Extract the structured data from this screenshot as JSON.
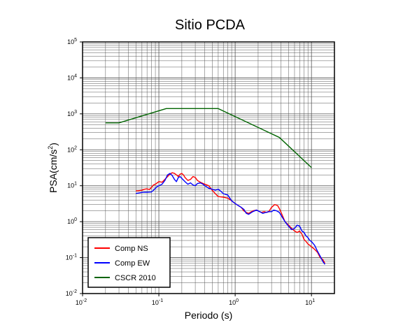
{
  "chart_data": {
    "type": "line",
    "title": "Sitio PCDA",
    "xlabel": "Periodo (s)",
    "ylabel_main": "PSA(cm/s",
    "ylabel_sup": "2",
    "ylabel_close": ")",
    "xscale": "log",
    "yscale": "log",
    "xlim": [
      0.01,
      20
    ],
    "ylim": [
      0.01,
      100000
    ],
    "grid": true,
    "legend_position": "bottom-left",
    "x_ticks": [
      {
        "value": 0.01,
        "base": "10",
        "exp": "-2"
      },
      {
        "value": 0.1,
        "base": "10",
        "exp": "-1"
      },
      {
        "value": 1,
        "base": "10",
        "exp": "0"
      },
      {
        "value": 10,
        "base": "10",
        "exp": "1"
      }
    ],
    "y_ticks": [
      {
        "value": 0.01,
        "base": "10",
        "exp": "-2"
      },
      {
        "value": 0.1,
        "base": "10",
        "exp": "-1"
      },
      {
        "value": 1,
        "base": "10",
        "exp": "0"
      },
      {
        "value": 10,
        "base": "10",
        "exp": "1"
      },
      {
        "value": 100,
        "base": "10",
        "exp": "2"
      },
      {
        "value": 1000,
        "base": "10",
        "exp": "3"
      },
      {
        "value": 10000,
        "base": "10",
        "exp": "4"
      },
      {
        "value": 100000,
        "base": "10",
        "exp": "5"
      }
    ],
    "series": [
      {
        "name": "Comp NS",
        "color": "#ff0000",
        "points": [
          [
            0.05,
            7.2
          ],
          [
            0.055,
            7.3
          ],
          [
            0.06,
            7.5
          ],
          [
            0.065,
            8.0
          ],
          [
            0.07,
            8.2
          ],
          [
            0.075,
            7.8
          ],
          [
            0.08,
            9.0
          ],
          [
            0.085,
            10.5
          ],
          [
            0.09,
            11.0
          ],
          [
            0.095,
            12.0
          ],
          [
            0.1,
            13.0
          ],
          [
            0.11,
            12.5
          ],
          [
            0.12,
            15.0
          ],
          [
            0.13,
            18.0
          ],
          [
            0.14,
            21.0
          ],
          [
            0.15,
            23.0
          ],
          [
            0.16,
            22.0
          ],
          [
            0.17,
            20.0
          ],
          [
            0.18,
            18.0
          ],
          [
            0.19,
            21.0
          ],
          [
            0.2,
            22.0
          ],
          [
            0.21,
            20.0
          ],
          [
            0.22,
            17.0
          ],
          [
            0.24,
            14.0
          ],
          [
            0.26,
            15.0
          ],
          [
            0.28,
            18.0
          ],
          [
            0.3,
            17.0
          ],
          [
            0.32,
            14.0
          ],
          [
            0.35,
            12.5
          ],
          [
            0.4,
            11.0
          ],
          [
            0.45,
            10.0
          ],
          [
            0.5,
            7.5
          ],
          [
            0.55,
            6.0
          ],
          [
            0.6,
            5.0
          ],
          [
            0.7,
            4.8
          ],
          [
            0.8,
            4.5
          ],
          [
            0.9,
            3.8
          ],
          [
            1.0,
            3.2
          ],
          [
            1.1,
            2.8
          ],
          [
            1.2,
            2.5
          ],
          [
            1.3,
            2.0
          ],
          [
            1.4,
            1.8
          ],
          [
            1.5,
            1.7
          ],
          [
            1.7,
            2.0
          ],
          [
            1.9,
            2.1
          ],
          [
            2.0,
            2.0
          ],
          [
            2.2,
            1.8
          ],
          [
            2.4,
            1.9
          ],
          [
            2.6,
            1.8
          ],
          [
            2.8,
            2.0
          ],
          [
            3.0,
            2.5
          ],
          [
            3.3,
            3.0
          ],
          [
            3.6,
            2.8
          ],
          [
            3.8,
            2.3
          ],
          [
            4.0,
            1.8
          ],
          [
            4.5,
            1.0
          ],
          [
            5.0,
            0.8
          ],
          [
            5.5,
            0.65
          ],
          [
            6.0,
            0.55
          ],
          [
            6.5,
            0.5
          ],
          [
            7.0,
            0.55
          ],
          [
            7.5,
            0.45
          ],
          [
            8.0,
            0.32
          ],
          [
            8.5,
            0.28
          ],
          [
            9.0,
            0.24
          ],
          [
            9.5,
            0.22
          ],
          [
            10.0,
            0.2
          ],
          [
            11.0,
            0.17
          ],
          [
            12.0,
            0.14
          ],
          [
            13.0,
            0.1
          ],
          [
            14.0,
            0.09
          ],
          [
            15.0,
            0.07
          ]
        ]
      },
      {
        "name": "Comp EW",
        "color": "#0000ff",
        "points": [
          [
            0.05,
            6.1
          ],
          [
            0.055,
            6.3
          ],
          [
            0.06,
            6.5
          ],
          [
            0.065,
            6.6
          ],
          [
            0.07,
            6.6
          ],
          [
            0.08,
            6.7
          ],
          [
            0.085,
            7.5
          ],
          [
            0.09,
            8.5
          ],
          [
            0.095,
            9.5
          ],
          [
            0.1,
            10.0
          ],
          [
            0.11,
            11.0
          ],
          [
            0.12,
            14.0
          ],
          [
            0.13,
            20.0
          ],
          [
            0.14,
            22.0
          ],
          [
            0.15,
            19.0
          ],
          [
            0.16,
            15.0
          ],
          [
            0.17,
            13.0
          ],
          [
            0.18,
            17.0
          ],
          [
            0.19,
            18.0
          ],
          [
            0.2,
            16.0
          ],
          [
            0.22,
            13.0
          ],
          [
            0.24,
            11.0
          ],
          [
            0.26,
            12.0
          ],
          [
            0.28,
            10.5
          ],
          [
            0.3,
            10.0
          ],
          [
            0.32,
            11.5
          ],
          [
            0.35,
            12.0
          ],
          [
            0.38,
            11.0
          ],
          [
            0.4,
            10.0
          ],
          [
            0.45,
            8.5
          ],
          [
            0.5,
            8.0
          ],
          [
            0.55,
            7.5
          ],
          [
            0.6,
            8.0
          ],
          [
            0.65,
            7.0
          ],
          [
            0.7,
            6.0
          ],
          [
            0.8,
            5.5
          ],
          [
            0.9,
            3.8
          ],
          [
            1.0,
            3.2
          ],
          [
            1.1,
            2.8
          ],
          [
            1.2,
            2.5
          ],
          [
            1.3,
            2.2
          ],
          [
            1.4,
            1.7
          ],
          [
            1.5,
            1.6
          ],
          [
            1.7,
            1.9
          ],
          [
            1.9,
            2.1
          ],
          [
            2.1,
            1.9
          ],
          [
            2.3,
            1.7
          ],
          [
            2.5,
            1.8
          ],
          [
            2.8,
            1.9
          ],
          [
            3.0,
            1.9
          ],
          [
            3.2,
            2.1
          ],
          [
            3.5,
            2.0
          ],
          [
            3.8,
            1.8
          ],
          [
            4.0,
            1.5
          ],
          [
            4.5,
            1.0
          ],
          [
            5.0,
            0.75
          ],
          [
            5.5,
            0.6
          ],
          [
            6.0,
            0.65
          ],
          [
            6.5,
            0.8
          ],
          [
            7.0,
            0.75
          ],
          [
            7.5,
            0.55
          ],
          [
            8.0,
            0.5
          ],
          [
            8.5,
            0.4
          ],
          [
            9.0,
            0.36
          ],
          [
            9.5,
            0.3
          ],
          [
            10.0,
            0.28
          ],
          [
            11.0,
            0.22
          ],
          [
            12.0,
            0.15
          ],
          [
            13.0,
            0.11
          ],
          [
            14.0,
            0.08
          ],
          [
            15.0,
            0.065
          ]
        ]
      },
      {
        "name": "CSCR 2010",
        "color": "#006400",
        "points": [
          [
            0.02,
            560
          ],
          [
            0.03,
            560
          ],
          [
            0.125,
            1400
          ],
          [
            0.6,
            1400
          ],
          [
            3.8,
            220
          ],
          [
            10.0,
            32
          ]
        ]
      }
    ]
  }
}
